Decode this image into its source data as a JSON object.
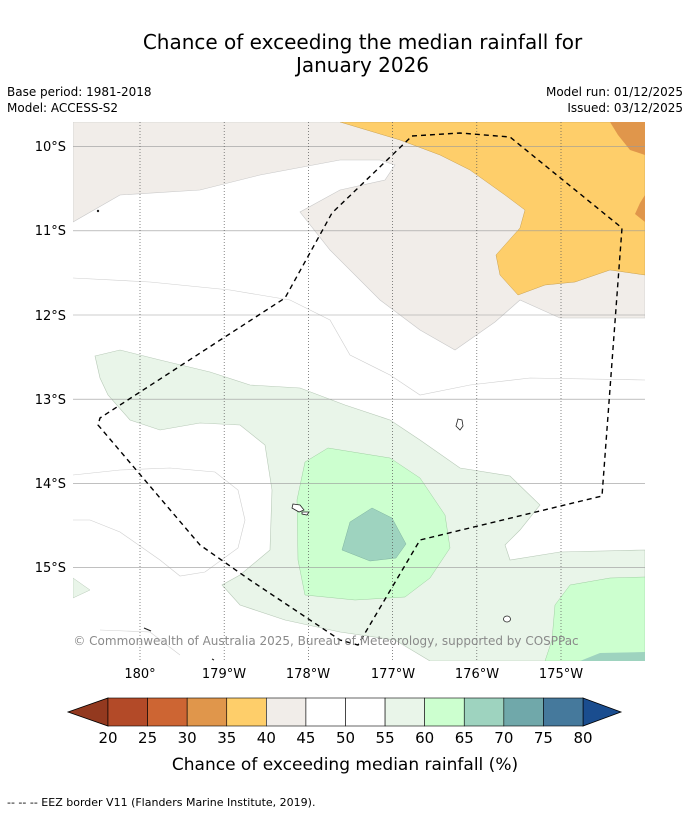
{
  "title": {
    "line1": "Chance of exceeding the median rainfall for",
    "line2": "January 2026"
  },
  "meta": {
    "base_period": "Base period: 1981-2018",
    "model": "Model: ACCESS-S2",
    "model_run": "Model run: 01/12/2025",
    "issued": "Issued: 03/12/2025"
  },
  "map": {
    "lat_labels": [
      "10°S",
      "11°S",
      "12°S",
      "13°S",
      "14°S",
      "15°S"
    ],
    "lon_labels": [
      "180°",
      "179°W",
      "178°W",
      "177°W",
      "176°W",
      "175°W"
    ],
    "copyright": "© Commonwealth of Australia 2025, Bureau of Meteorology, supported by COSPPac"
  },
  "colorbar": {
    "ticks": [
      "20",
      "25",
      "30",
      "35",
      "40",
      "45",
      "50",
      "55",
      "60",
      "65",
      "70",
      "75",
      "80"
    ],
    "label": "Chance of exceeding median rainfall (%)",
    "colors": [
      "#b34a28",
      "#cd6533",
      "#e0964b",
      "#fece6a",
      "#f1ede9",
      "#ffffff",
      "#ffffff",
      "#e9f5e9",
      "#ccffcf",
      "#9ed3bf",
      "#70a8aa",
      "#45799c"
    ],
    "below_color": "#93391f",
    "above_color": "#1a4d8f"
  },
  "footer": "--  --  -- EEZ border V11 (Flanders Marine Institute, 2019)."
}
